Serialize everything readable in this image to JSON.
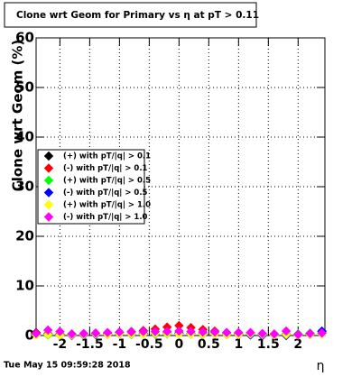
{
  "chart_data": {
    "type": "scatter",
    "title": "Clone wrt Geom for Primary vs  η at pT > 0.11",
    "y_label": "Clone wrt Geom (%)",
    "x_label": "η",
    "timestamp": "Tue May 15 09:59:28 2018",
    "x": [
      -2.4,
      -2.2,
      -2.0,
      -1.8,
      -1.6,
      -1.4,
      -1.2,
      -1.0,
      -0.8,
      -0.6,
      -0.4,
      -0.2,
      0.0,
      0.2,
      0.4,
      0.6,
      0.8,
      1.0,
      1.2,
      1.4,
      1.6,
      1.8,
      2.0,
      2.2,
      2.4
    ],
    "series": [
      {
        "name": "(+) with pT/|q| > 0.1",
        "color": "#000000",
        "values": [
          0.6,
          0.3,
          0.2,
          0.3,
          0.2,
          0.3,
          0.2,
          0.3,
          0.3,
          0.4,
          0.3,
          0.4,
          0.4,
          0.3,
          0.3,
          0.3,
          0.2,
          0.3,
          0.2,
          0.3,
          0.2,
          0.3,
          0.3,
          0.4,
          0.8
        ]
      },
      {
        "name": "(-) with pT/|q| > 0.1",
        "color": "#ff0000",
        "values": [
          0.5,
          0.4,
          0.3,
          0.2,
          0.3,
          0.4,
          0.5,
          0.6,
          0.8,
          1.0,
          1.3,
          1.7,
          2.0,
          1.6,
          1.2,
          0.9,
          0.6,
          0.5,
          0.4,
          0.3,
          0.3,
          0.2,
          0.3,
          0.3,
          0.4
        ]
      },
      {
        "name": "(+) with pT/|q| > 0.5",
        "color": "#00ff00",
        "values": [
          0.2,
          0.1,
          0.1,
          0.2,
          0.1,
          0.2,
          0.2,
          0.3,
          0.2,
          0.3,
          0.3,
          0.3,
          0.3,
          0.3,
          0.2,
          0.3,
          0.2,
          0.2,
          0.2,
          0.1,
          0.2,
          0.1,
          0.3,
          0.5,
          0.6
        ]
      },
      {
        "name": "(-) with pT/|q| > 0.5",
        "color": "#0000ff",
        "values": [
          0.3,
          0.2,
          0.1,
          0.0,
          0.1,
          0.2,
          0.3,
          0.3,
          0.3,
          0.4,
          0.4,
          0.5,
          0.5,
          0.4,
          0.4,
          0.3,
          0.3,
          0.2,
          0.1,
          0.0,
          0.1,
          0.0,
          0.1,
          0.2,
          0.9
        ]
      },
      {
        "name": "(+) with pT/|q| > 1.0",
        "color": "#ffff00",
        "values": [
          0.1,
          0.2,
          0.1,
          0.1,
          0.2,
          0.3,
          0.2,
          0.3,
          0.3,
          0.3,
          0.4,
          0.4,
          0.3,
          0.3,
          0.3,
          0.3,
          0.2,
          0.2,
          0.3,
          0.2,
          0.1,
          0.2,
          0.1,
          0.2,
          0.3
        ]
      },
      {
        "name": "(-) with pT/|q| > 1.0",
        "color": "#ff00ff",
        "values": [
          0.4,
          1.1,
          0.8,
          0.3,
          0.4,
          0.5,
          0.6,
          0.7,
          0.7,
          0.8,
          0.8,
          0.8,
          0.9,
          0.8,
          0.7,
          0.7,
          0.6,
          0.6,
          0.6,
          0.4,
          0.3,
          0.9,
          0.2,
          0.4,
          0.5
        ]
      }
    ],
    "xlim": [
      -2.4,
      2.45
    ],
    "ylim": [
      0,
      60
    ],
    "xticks": [
      -2,
      -1.5,
      -1,
      -0.5,
      0,
      0.5,
      1,
      1.5,
      2
    ],
    "yticks": [
      0,
      10,
      20,
      30,
      40,
      50,
      60
    ],
    "grid": true,
    "legend": "middle-left"
  }
}
